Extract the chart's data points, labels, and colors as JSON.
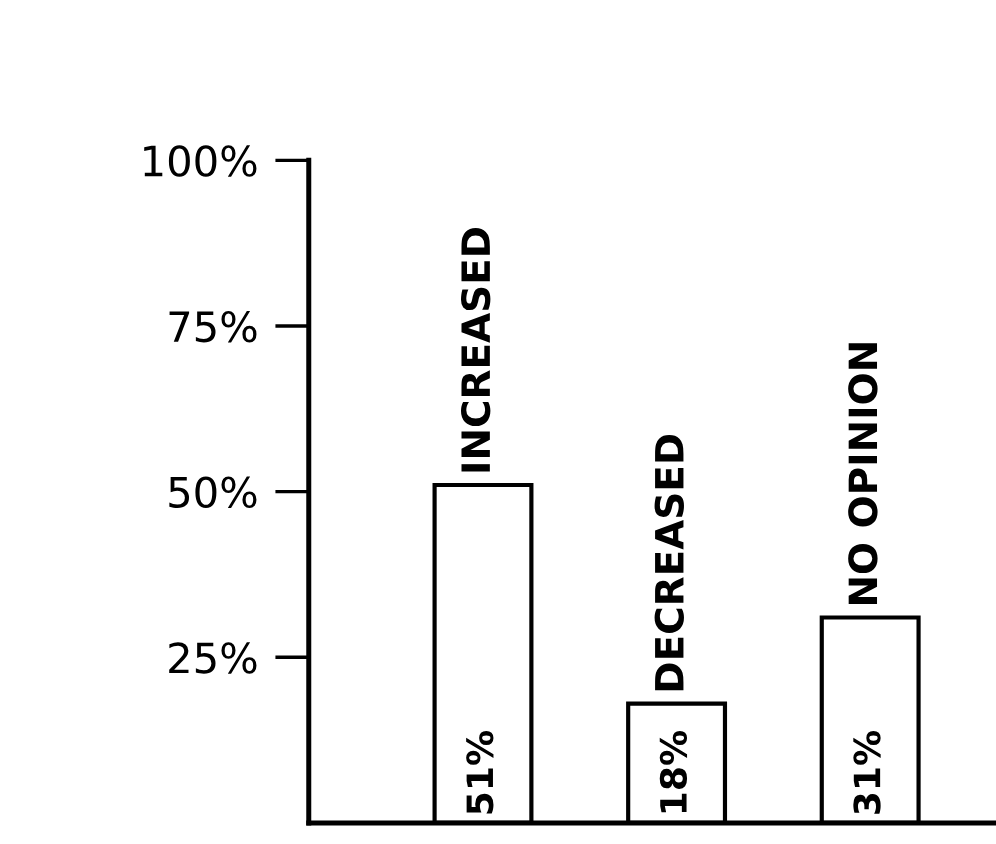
{
  "chart_data": {
    "type": "bar",
    "categories": [
      "INCREASED",
      "DECREASED",
      "NO OPINION"
    ],
    "values": [
      51,
      18,
      31
    ],
    "value_labels": [
      "51%",
      "18%",
      "31%"
    ],
    "color": "#ffffff",
    "ylim": [
      0,
      100
    ],
    "yticks": [
      {
        "value": 25,
        "label": "25%"
      },
      {
        "value": 50,
        "label": "50%"
      },
      {
        "value": 75,
        "label": "75%"
      },
      {
        "value": 100,
        "label": "100%"
      }
    ],
    "grid": false
  }
}
